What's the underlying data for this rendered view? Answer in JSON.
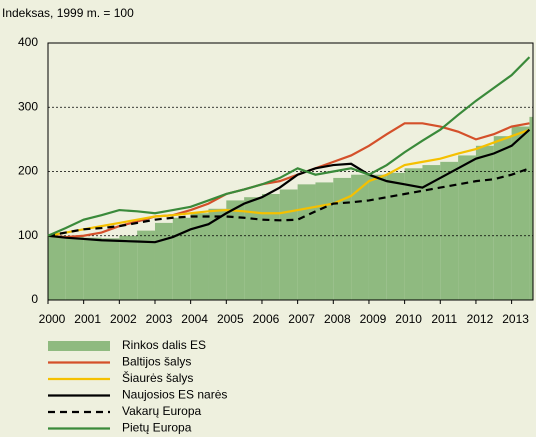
{
  "chart_data": {
    "type": "line",
    "axis_label": "Indeksas, 1999 m. = 100",
    "x": [
      2000,
      2000.5,
      2001,
      2001.5,
      2002,
      2002.5,
      2003,
      2003.5,
      2004,
      2004.5,
      2005,
      2005.5,
      2006,
      2006.5,
      2007,
      2007.5,
      2008,
      2008.5,
      2009,
      2009.5,
      2010,
      2010.5,
      2011,
      2011.5,
      2012,
      2012.5,
      2013,
      2013.5
    ],
    "xlim": [
      2000,
      2013.6
    ],
    "xticks": [
      2000,
      2001,
      2002,
      2003,
      2004,
      2005,
      2006,
      2007,
      2008,
      2009,
      2010,
      2011,
      2012,
      2013
    ],
    "ylim": [
      0,
      400
    ],
    "yticks": [
      0,
      100,
      200,
      300,
      400
    ],
    "grid": true,
    "legend": "bottom-left",
    "series": [
      {
        "name": "Rinkos dalis ES",
        "kind": "bar",
        "color": "#8fba80",
        "values": [
          100,
          98,
          97,
          96,
          100,
          108,
          120,
          128,
          135,
          142,
          155,
          160,
          165,
          172,
          180,
          183,
          190,
          195,
          195,
          198,
          205,
          210,
          215,
          225,
          240,
          255,
          270,
          285
        ]
      },
      {
        "name": "Baltijos šalys",
        "color": "#d4502a",
        "values": [
          100,
          98,
          100,
          105,
          115,
          122,
          130,
          132,
          140,
          150,
          165,
          172,
          180,
          185,
          195,
          205,
          215,
          225,
          240,
          258,
          275,
          275,
          270,
          262,
          250,
          258,
          270,
          275
        ]
      },
      {
        "name": "Šiaurės šalys",
        "color": "#f5c000",
        "values": [
          100,
          105,
          110,
          115,
          120,
          125,
          130,
          132,
          135,
          138,
          140,
          138,
          135,
          135,
          140,
          145,
          150,
          162,
          185,
          195,
          210,
          215,
          220,
          228,
          235,
          245,
          255,
          265
        ]
      },
      {
        "name": "Naujosios ES narės",
        "color": "#000000",
        "values": [
          100,
          97,
          95,
          93,
          92,
          91,
          90,
          98,
          110,
          118,
          135,
          150,
          160,
          175,
          195,
          205,
          210,
          212,
          195,
          185,
          180,
          175,
          190,
          205,
          220,
          228,
          240,
          265
        ]
      },
      {
        "name": "Vakarų Europa",
        "color": "#000000",
        "dash": true,
        "values": [
          100,
          105,
          110,
          112,
          115,
          120,
          125,
          128,
          130,
          130,
          130,
          128,
          125,
          124,
          125,
          138,
          150,
          152,
          155,
          160,
          165,
          170,
          175,
          180,
          185,
          188,
          195,
          205
        ]
      },
      {
        "name": "Pietų Europa",
        "color": "#3a8a3a",
        "values": [
          100,
          112,
          125,
          132,
          140,
          138,
          135,
          140,
          145,
          155,
          165,
          172,
          180,
          190,
          205,
          195,
          200,
          205,
          195,
          210,
          230,
          248,
          265,
          288,
          310,
          330,
          350,
          378
        ]
      }
    ]
  }
}
